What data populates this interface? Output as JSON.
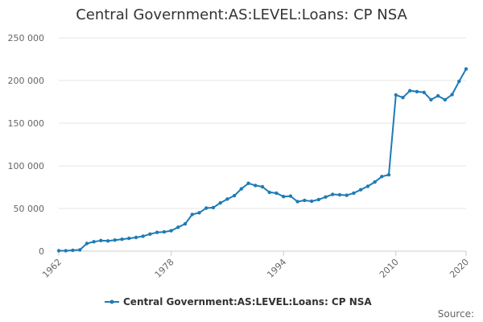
{
  "chart_data": {
    "type": "line",
    "title": "Central Government:AS:LEVEL:Loans: CP NSA",
    "xlabel": "",
    "ylabel": "",
    "xlim": [
      1962,
      2020
    ],
    "ylim": [
      0,
      250000
    ],
    "x_ticks": [
      "1962",
      "1978",
      "1994",
      "2010",
      "2020"
    ],
    "y_ticks": [
      "0",
      "50 000",
      "100 000",
      "150 000",
      "200 000",
      "250 000"
    ],
    "grid": "horizontal",
    "legend": "bottom",
    "color": "#1f7bb6",
    "source_label": "Source:",
    "series": [
      {
        "name": "Central Government:AS:LEVEL:Loans: CP NSA",
        "x": [
          1962,
          1963,
          1964,
          1965,
          1966,
          1967,
          1968,
          1969,
          1970,
          1971,
          1972,
          1973,
          1974,
          1975,
          1976,
          1977,
          1978,
          1979,
          1980,
          1981,
          1982,
          1983,
          1984,
          1985,
          1986,
          1987,
          1988,
          1989,
          1990,
          1991,
          1992,
          1993,
          1994,
          1995,
          1996,
          1997,
          1998,
          1999,
          2000,
          2001,
          2002,
          2003,
          2004,
          2005,
          2006,
          2007,
          2008,
          2009,
          2010,
          2011,
          2012,
          2013,
          2014,
          2015,
          2016,
          2017,
          2018,
          2019,
          2020
        ],
        "values": [
          500,
          500,
          1000,
          1500,
          9000,
          11000,
          12500,
          12000,
          13000,
          14000,
          15000,
          16000,
          17500,
          20000,
          22000,
          22500,
          24000,
          28000,
          32000,
          43000,
          45000,
          50500,
          51000,
          56500,
          61000,
          65000,
          73000,
          79500,
          77000,
          75500,
          69000,
          68000,
          64000,
          64500,
          58000,
          59500,
          58500,
          60500,
          63500,
          66500,
          66000,
          65500,
          68000,
          72000,
          76000,
          81000,
          87500,
          89500,
          183000,
          180000,
          188000,
          187000,
          186000,
          177500,
          182000,
          177500,
          183500,
          199000,
          213500
        ]
      }
    ]
  }
}
